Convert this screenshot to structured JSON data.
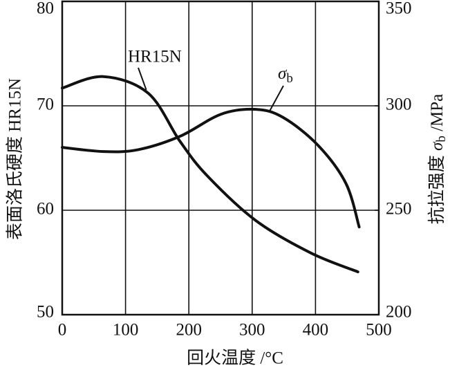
{
  "chart_data": {
    "type": "line",
    "x_label": "回火温度 /°C",
    "y_label": "表面洛氏硬度 HR15N",
    "y2_label": {
      "prefix": "抗拉强度 ",
      "symbol": "σ",
      "subscript": "b",
      "suffix": " /MPa"
    },
    "xlim": [
      0,
      500
    ],
    "xticks": [
      0,
      100,
      200,
      300,
      400,
      500
    ],
    "ylim": [
      50,
      80
    ],
    "yticks": [
      50,
      60,
      70,
      80
    ],
    "y2lim": [
      200,
      350
    ],
    "y2ticks": [
      200,
      250,
      300,
      350
    ],
    "grid": true,
    "series": [
      {
        "name": "HR15N",
        "color": "#111111",
        "x": [
          0,
          65,
          136,
          186,
          229,
          306,
          393,
          467
        ],
        "values": [
          71.7,
          72.8,
          71.2,
          66.6,
          63.3,
          59.0,
          55.9,
          54.1
        ]
      },
      {
        "name": {
          "symbol": "σ",
          "subscript": "b"
        },
        "color": "#111111",
        "axis": "y2",
        "x": [
          0,
          65,
          120,
          186,
          251,
          306,
          349,
          404,
          448,
          469
        ],
        "values": [
          280.1,
          278.1,
          279.0,
          285.4,
          296.0,
          298.3,
          294.4,
          281.1,
          262.9,
          242.0
        ]
      }
    ]
  }
}
